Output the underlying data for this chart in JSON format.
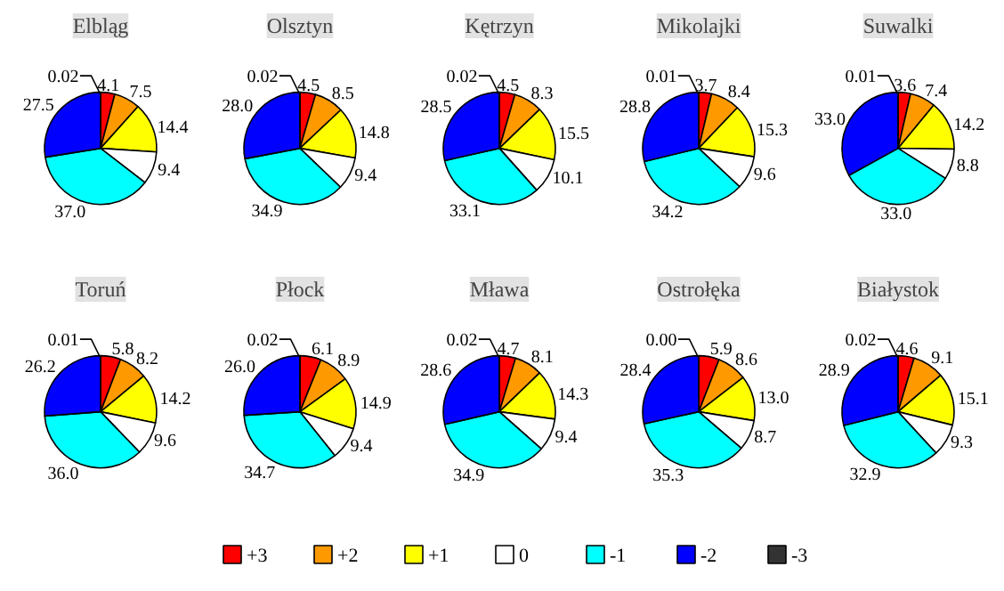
{
  "chart_data": [
    {
      "type": "pie",
      "title": "Elbląg",
      "categories": [
        "+3",
        "+2",
        "+1",
        "0",
        "-1",
        "-2",
        "-3"
      ],
      "values": [
        4.1,
        7.5,
        14.4,
        9.4,
        37.0,
        27.5,
        0.02
      ],
      "value_labels": [
        "4.1",
        "7.5",
        "14.4",
        "9.4",
        "37.0",
        "27.5",
        "0.02"
      ],
      "colors": [
        "#ff0000",
        "#ff9900",
        "#ffff00",
        "#ffffff",
        "#00ffff",
        "#0000ff",
        "#333333"
      ],
      "legend": "bottom"
    },
    {
      "type": "pie",
      "title": "Olsztyn",
      "values": [
        4.5,
        8.5,
        14.8,
        9.4,
        34.9,
        28.0,
        0.02
      ],
      "value_labels": [
        "4.5",
        "8.5",
        "14.8",
        "9.4",
        "34.9",
        "28.0",
        "0.02"
      ],
      "colors": [
        "#ff0000",
        "#ff9900",
        "#ffff00",
        "#ffffff",
        "#00ffff",
        "#0000ff",
        "#333333"
      ]
    },
    {
      "type": "pie",
      "title": "Kętrzyn",
      "values": [
        4.5,
        8.3,
        15.5,
        10.1,
        33.1,
        28.5,
        0.02
      ],
      "value_labels": [
        "4.5",
        "8.3",
        "15.5",
        "10.1",
        "33.1",
        "28.5",
        "0.02"
      ],
      "colors": [
        "#ff0000",
        "#ff9900",
        "#ffff00",
        "#ffffff",
        "#00ffff",
        "#0000ff",
        "#333333"
      ]
    },
    {
      "type": "pie",
      "title": "Mikolajki",
      "values": [
        3.7,
        8.4,
        15.3,
        9.6,
        34.2,
        28.8,
        0.01
      ],
      "value_labels": [
        "3.7",
        "8.4",
        "15.3",
        "9.6",
        "34.2",
        "28.8",
        "0.01"
      ],
      "colors": [
        "#ff0000",
        "#ff9900",
        "#ffff00",
        "#ffffff",
        "#00ffff",
        "#0000ff",
        "#333333"
      ]
    },
    {
      "type": "pie",
      "title": "Suwalki",
      "values": [
        3.6,
        7.4,
        14.2,
        8.8,
        33.0,
        33.0,
        0.01
      ],
      "value_labels": [
        "3.6",
        "7.4",
        "14.2",
        "8.8",
        "33.0",
        "33.0",
        "0.01"
      ],
      "colors": [
        "#ff0000",
        "#ff9900",
        "#ffff00",
        "#ffffff",
        "#00ffff",
        "#0000ff",
        "#333333"
      ]
    },
    {
      "type": "pie",
      "title": "Toruń",
      "values": [
        5.8,
        8.2,
        14.2,
        9.6,
        36.0,
        26.2,
        0.01
      ],
      "value_labels": [
        "5.8",
        "8.2",
        "14.2",
        "9.6",
        "36.0",
        "26.2",
        "0.01"
      ],
      "colors": [
        "#ff0000",
        "#ff9900",
        "#ffff00",
        "#ffffff",
        "#00ffff",
        "#0000ff",
        "#333333"
      ]
    },
    {
      "type": "pie",
      "title": "Płock",
      "values": [
        6.1,
        8.9,
        14.9,
        9.4,
        34.7,
        26.0,
        0.02
      ],
      "value_labels": [
        "6.1",
        "8.9",
        "14.9",
        "9.4",
        "34.7",
        "26.0",
        "0.02"
      ],
      "colors": [
        "#ff0000",
        "#ff9900",
        "#ffff00",
        "#ffffff",
        "#00ffff",
        "#0000ff",
        "#333333"
      ]
    },
    {
      "type": "pie",
      "title": "Mława",
      "values": [
        4.7,
        8.1,
        14.3,
        9.4,
        34.9,
        28.6,
        0.02
      ],
      "value_labels": [
        "4.7",
        "8.1",
        "14.3",
        "9.4",
        "34.9",
        "28.6",
        "0.02"
      ],
      "colors": [
        "#ff0000",
        "#ff9900",
        "#ffff00",
        "#ffffff",
        "#00ffff",
        "#0000ff",
        "#333333"
      ]
    },
    {
      "type": "pie",
      "title": "Ostrołęka",
      "values": [
        5.9,
        8.6,
        13.0,
        8.7,
        35.3,
        28.4,
        0.0
      ],
      "value_labels": [
        "5.9",
        "8.6",
        "13.0",
        "8.7",
        "35.3",
        "28.4",
        "0.00"
      ],
      "colors": [
        "#ff0000",
        "#ff9900",
        "#ffff00",
        "#ffffff",
        "#00ffff",
        "#0000ff",
        "#333333"
      ]
    },
    {
      "type": "pie",
      "title": "Białystok",
      "values": [
        4.6,
        9.1,
        15.1,
        9.3,
        32.9,
        28.9,
        0.02
      ],
      "value_labels": [
        "4.6",
        "9.1",
        "15.1",
        "9.3",
        "32.9",
        "28.9",
        "0.02"
      ],
      "colors": [
        "#ff0000",
        "#ff9900",
        "#ffff00",
        "#ffffff",
        "#00ffff",
        "#0000ff",
        "#333333"
      ]
    }
  ]
}
